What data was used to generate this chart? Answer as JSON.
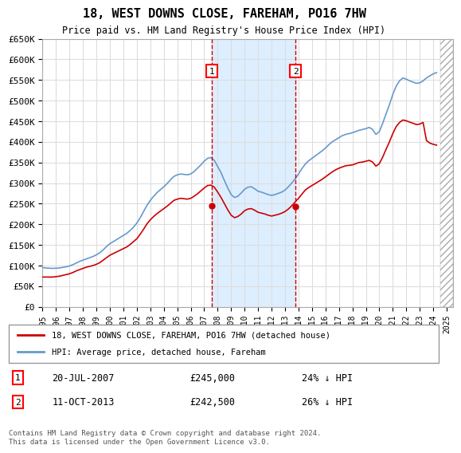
{
  "title": "18, WEST DOWNS CLOSE, FAREHAM, PO16 7HW",
  "subtitle": "Price paid vs. HM Land Registry's House Price Index (HPI)",
  "ylabel_ticks": [
    "£0",
    "£50K",
    "£100K",
    "£150K",
    "£200K",
    "£250K",
    "£300K",
    "£350K",
    "£400K",
    "£450K",
    "£500K",
    "£550K",
    "£600K",
    "£650K"
  ],
  "ylim": [
    0,
    650000
  ],
  "ytick_vals": [
    0,
    50000,
    100000,
    150000,
    200000,
    250000,
    300000,
    350000,
    400000,
    450000,
    500000,
    550000,
    600000,
    650000
  ],
  "xlim_start": 1995.0,
  "xlim_end": 2025.5,
  "transaction1_x": 2007.55,
  "transaction1_y": 245000,
  "transaction2_x": 2013.78,
  "transaction2_y": 242500,
  "transaction1_date": "20-JUL-2007",
  "transaction1_price": "£245,000",
  "transaction1_hpi": "24% ↓ HPI",
  "transaction2_date": "11-OCT-2013",
  "transaction2_price": "£242,500",
  "transaction2_hpi": "26% ↓ HPI",
  "legend_line1": "18, WEST DOWNS CLOSE, FAREHAM, PO16 7HW (detached house)",
  "legend_line2": "HPI: Average price, detached house, Fareham",
  "footer": "Contains HM Land Registry data © Crown copyright and database right 2024.\nThis data is licensed under the Open Government Licence v3.0.",
  "line_color_red": "#cc0000",
  "line_color_blue": "#6699cc",
  "grid_color": "#dddddd",
  "background_color": "#ffffff",
  "highlight_color": "#ddeeff",
  "hpi_years": [
    1995.0,
    1995.25,
    1995.5,
    1995.75,
    1996.0,
    1996.25,
    1996.5,
    1996.75,
    1997.0,
    1997.25,
    1997.5,
    1997.75,
    1998.0,
    1998.25,
    1998.5,
    1998.75,
    1999.0,
    1999.25,
    1999.5,
    1999.75,
    2000.0,
    2000.25,
    2000.5,
    2000.75,
    2001.0,
    2001.25,
    2001.5,
    2001.75,
    2002.0,
    2002.25,
    2002.5,
    2002.75,
    2003.0,
    2003.25,
    2003.5,
    2003.75,
    2004.0,
    2004.25,
    2004.5,
    2004.75,
    2005.0,
    2005.25,
    2005.5,
    2005.75,
    2006.0,
    2006.25,
    2006.5,
    2006.75,
    2007.0,
    2007.25,
    2007.5,
    2007.75,
    2008.0,
    2008.25,
    2008.5,
    2008.75,
    2009.0,
    2009.25,
    2009.5,
    2009.75,
    2010.0,
    2010.25,
    2010.5,
    2010.75,
    2011.0,
    2011.25,
    2011.5,
    2011.75,
    2012.0,
    2012.25,
    2012.5,
    2012.75,
    2013.0,
    2013.25,
    2013.5,
    2013.75,
    2014.0,
    2014.25,
    2014.5,
    2014.75,
    2015.0,
    2015.25,
    2015.5,
    2015.75,
    2016.0,
    2016.25,
    2016.5,
    2016.75,
    2017.0,
    2017.25,
    2017.5,
    2017.75,
    2018.0,
    2018.25,
    2018.5,
    2018.75,
    2019.0,
    2019.25,
    2019.5,
    2019.75,
    2020.0,
    2020.25,
    2020.5,
    2020.75,
    2021.0,
    2021.25,
    2021.5,
    2021.75,
    2022.0,
    2022.25,
    2022.5,
    2022.75,
    2023.0,
    2023.25,
    2023.5,
    2023.75,
    2024.0,
    2024.25
  ],
  "hpi_values": [
    95000,
    94000,
    93500,
    93000,
    93500,
    94000,
    95500,
    97000,
    99000,
    102000,
    106000,
    110000,
    113000,
    116000,
    119000,
    122000,
    126000,
    131000,
    138000,
    146000,
    153000,
    158000,
    163000,
    168000,
    173000,
    178000,
    185000,
    193000,
    203000,
    216000,
    231000,
    246000,
    258000,
    268000,
    277000,
    284000,
    291000,
    299000,
    308000,
    316000,
    320000,
    322000,
    321000,
    320000,
    322000,
    328000,
    336000,
    344000,
    353000,
    360000,
    362000,
    355000,
    340000,
    325000,
    306000,
    288000,
    272000,
    265000,
    268000,
    276000,
    285000,
    290000,
    291000,
    286000,
    280000,
    278000,
    275000,
    272000,
    270000,
    272000,
    275000,
    278000,
    283000,
    291000,
    300000,
    310000,
    322000,
    335000,
    346000,
    354000,
    360000,
    366000,
    372000,
    378000,
    385000,
    393000,
    400000,
    405000,
    410000,
    415000,
    418000,
    420000,
    422000,
    425000,
    428000,
    430000,
    432000,
    435000,
    430000,
    418000,
    425000,
    445000,
    468000,
    490000,
    515000,
    535000,
    548000,
    555000,
    552000,
    548000,
    545000,
    542000,
    543000,
    548000,
    555000,
    560000,
    565000,
    568000
  ],
  "red_years": [
    1995.0,
    1995.25,
    1995.5,
    1995.75,
    1996.0,
    1996.25,
    1996.5,
    1996.75,
    1997.0,
    1997.25,
    1997.5,
    1997.75,
    1998.0,
    1998.25,
    1998.5,
    1998.75,
    1999.0,
    1999.25,
    1999.5,
    1999.75,
    2000.0,
    2000.25,
    2000.5,
    2000.75,
    2001.0,
    2001.25,
    2001.5,
    2001.75,
    2002.0,
    2002.25,
    2002.5,
    2002.75,
    2003.0,
    2003.25,
    2003.5,
    2003.75,
    2004.0,
    2004.25,
    2004.5,
    2004.75,
    2005.0,
    2005.25,
    2005.5,
    2005.75,
    2006.0,
    2006.25,
    2006.5,
    2006.75,
    2007.0,
    2007.25,
    2007.5,
    2007.75,
    2008.0,
    2008.25,
    2008.5,
    2008.75,
    2009.0,
    2009.25,
    2009.5,
    2009.75,
    2010.0,
    2010.25,
    2010.5,
    2010.75,
    2011.0,
    2011.25,
    2011.5,
    2011.75,
    2012.0,
    2012.25,
    2012.5,
    2012.75,
    2013.0,
    2013.25,
    2013.5,
    2013.75,
    2014.0,
    2014.25,
    2014.5,
    2014.75,
    2015.0,
    2015.25,
    2015.5,
    2015.75,
    2016.0,
    2016.25,
    2016.5,
    2016.75,
    2017.0,
    2017.25,
    2017.5,
    2017.75,
    2018.0,
    2018.25,
    2018.5,
    2018.75,
    2019.0,
    2019.25,
    2019.5,
    2019.75,
    2020.0,
    2020.25,
    2020.5,
    2020.75,
    2021.0,
    2021.25,
    2021.5,
    2021.75,
    2022.0,
    2022.25,
    2022.5,
    2022.75,
    2023.0,
    2023.25,
    2023.5,
    2023.75,
    2024.0,
    2024.25
  ],
  "red_values": [
    72000,
    72000,
    72000,
    72000,
    73000,
    74000,
    76000,
    78000,
    80000,
    83000,
    87000,
    90000,
    93000,
    96000,
    98000,
    100000,
    103000,
    107000,
    113000,
    119000,
    125000,
    129000,
    133000,
    137000,
    141000,
    145000,
    151000,
    158000,
    165000,
    176000,
    188000,
    201000,
    211000,
    219000,
    226000,
    232000,
    238000,
    244000,
    251000,
    258000,
    261000,
    263000,
    262000,
    261000,
    263000,
    268000,
    274000,
    281000,
    288000,
    294000,
    295000,
    290000,
    278000,
    265000,
    250000,
    235000,
    222000,
    216000,
    219000,
    225000,
    233000,
    237000,
    238000,
    234000,
    229000,
    227000,
    225000,
    222000,
    220000,
    222000,
    224000,
    227000,
    231000,
    237000,
    245000,
    254000,
    263000,
    273000,
    283000,
    289000,
    294000,
    299000,
    304000,
    309000,
    315000,
    321000,
    327000,
    332000,
    336000,
    339000,
    342000,
    343000,
    344000,
    347000,
    350000,
    351000,
    353000,
    355000,
    351000,
    341000,
    347000,
    363000,
    382000,
    400000,
    420000,
    437000,
    447000,
    453000,
    451000,
    448000,
    445000,
    442000,
    443000,
    447000,
    403000,
    397000,
    394000,
    392000
  ]
}
